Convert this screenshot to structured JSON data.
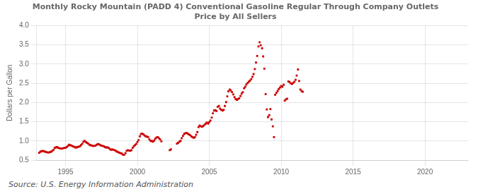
{
  "chart_data": {
    "type": "scatter",
    "title": "Monthly Rocky Mountain (PADD 4) Conventional Gasoline Regular Through Company Outlets\nPrice by All Sellers",
    "ylabel": "Dollars per Gallon",
    "source": "Source: U.S. Energy Information Administration",
    "color": "#cc0000",
    "marker": "square",
    "grid": true,
    "xlim": [
      1993.0,
      2023.0
    ],
    "ylim": [
      0.5,
      4.0
    ],
    "xticks": [
      1995,
      2000,
      2005,
      2010,
      2015,
      2020
    ],
    "yticks": [
      0.5,
      {
        "value": 1.0,
        "label": "1.0"
      },
      1.5,
      {
        "value": 2.0,
        "label": "2.0"
      },
      2.5,
      {
        "value": 3.0,
        "label": "3.0"
      },
      3.5,
      {
        "value": 4.0,
        "label": "4.0"
      }
    ],
    "x": [
      1993.17,
      1993.25,
      1993.33,
      1993.42,
      1993.5,
      1993.58,
      1993.67,
      1993.75,
      1993.83,
      1993.92,
      1994.0,
      1994.08,
      1994.17,
      1994.25,
      1994.33,
      1994.42,
      1994.5,
      1994.58,
      1994.67,
      1994.75,
      1994.83,
      1994.92,
      1995.0,
      1995.08,
      1995.17,
      1995.25,
      1995.33,
      1995.42,
      1995.5,
      1995.58,
      1995.67,
      1995.75,
      1995.83,
      1995.92,
      1996.0,
      1996.08,
      1996.17,
      1996.25,
      1996.33,
      1996.42,
      1996.5,
      1996.58,
      1996.67,
      1996.75,
      1996.83,
      1996.92,
      1997.0,
      1997.08,
      1997.17,
      1997.25,
      1997.33,
      1997.42,
      1997.5,
      1997.58,
      1997.67,
      1997.75,
      1997.83,
      1997.92,
      1998.0,
      1998.08,
      1998.17,
      1998.25,
      1998.33,
      1998.42,
      1998.5,
      1998.58,
      1998.67,
      1998.75,
      1998.83,
      1998.92,
      1999.0,
      1999.08,
      1999.17,
      1999.25,
      1999.33,
      1999.42,
      1999.5,
      1999.58,
      1999.67,
      1999.75,
      1999.83,
      1999.92,
      2000.0,
      2000.08,
      2000.17,
      2000.25,
      2000.33,
      2000.42,
      2000.5,
      2000.58,
      2000.67,
      2000.75,
      2000.83,
      2000.92,
      2001.0,
      2001.08,
      2001.17,
      2001.25,
      2001.33,
      2001.42,
      2001.5,
      2001.58,
      2001.67,
      2002.25,
      2002.33,
      2002.75,
      2002.83,
      2002.92,
      2003.0,
      2003.08,
      2003.17,
      2003.25,
      2003.33,
      2003.42,
      2003.5,
      2003.58,
      2003.67,
      2003.75,
      2003.83,
      2003.92,
      2004.0,
      2004.08,
      2004.17,
      2004.25,
      2004.33,
      2004.42,
      2004.5,
      2004.58,
      2004.67,
      2004.75,
      2004.83,
      2004.92,
      2005.0,
      2005.08,
      2005.17,
      2005.25,
      2005.33,
      2005.42,
      2005.5,
      2005.58,
      2005.67,
      2005.75,
      2005.83,
      2005.92,
      2006.0,
      2006.08,
      2006.17,
      2006.25,
      2006.33,
      2006.42,
      2006.5,
      2006.58,
      2006.67,
      2006.75,
      2006.83,
      2006.92,
      2007.0,
      2007.08,
      2007.17,
      2007.25,
      2007.33,
      2007.42,
      2007.5,
      2007.58,
      2007.67,
      2007.75,
      2007.83,
      2007.92,
      2008.0,
      2008.08,
      2008.17,
      2008.25,
      2008.33,
      2008.42,
      2008.5,
      2008.58,
      2008.67,
      2008.75,
      2008.83,
      2008.92,
      2009.0,
      2009.08,
      2009.17,
      2009.25,
      2009.33,
      2009.42,
      2009.5,
      2009.58,
      2009.67,
      2009.75,
      2009.83,
      2009.92,
      2010.0,
      2010.08,
      2010.17,
      2010.25,
      2010.33,
      2010.42,
      2010.5,
      2010.58,
      2010.67,
      2010.75,
      2010.83,
      2010.92,
      2011.0,
      2011.08,
      2011.17,
      2011.25,
      2011.33,
      2011.42,
      2011.5
    ],
    "values": [
      0.69,
      0.72,
      0.73,
      0.74,
      0.73,
      0.72,
      0.71,
      0.7,
      0.7,
      0.71,
      0.72,
      0.74,
      0.77,
      0.82,
      0.83,
      0.84,
      0.82,
      0.81,
      0.8,
      0.8,
      0.81,
      0.82,
      0.82,
      0.84,
      0.87,
      0.9,
      0.89,
      0.88,
      0.86,
      0.85,
      0.83,
      0.83,
      0.84,
      0.85,
      0.86,
      0.89,
      0.93,
      0.98,
      1.0,
      0.97,
      0.95,
      0.93,
      0.9,
      0.89,
      0.88,
      0.87,
      0.87,
      0.88,
      0.9,
      0.92,
      0.91,
      0.89,
      0.88,
      0.87,
      0.86,
      0.84,
      0.83,
      0.83,
      0.82,
      0.79,
      0.77,
      0.78,
      0.77,
      0.76,
      0.74,
      0.72,
      0.71,
      0.69,
      0.68,
      0.67,
      0.64,
      0.64,
      0.68,
      0.74,
      0.76,
      0.75,
      0.74,
      0.76,
      0.82,
      0.86,
      0.89,
      0.92,
      0.97,
      1.02,
      1.12,
      1.18,
      1.19,
      1.17,
      1.14,
      1.12,
      1.11,
      1.1,
      1.04,
      1.0,
      1.0,
      0.98,
      1.01,
      1.06,
      1.09,
      1.1,
      1.07,
      1.04,
      0.99,
      0.76,
      0.78,
      0.93,
      0.95,
      0.98,
      1.0,
      1.07,
      1.13,
      1.18,
      1.2,
      1.21,
      1.19,
      1.17,
      1.15,
      1.12,
      1.1,
      1.08,
      1.1,
      1.16,
      1.23,
      1.36,
      1.4,
      1.38,
      1.37,
      1.39,
      1.42,
      1.45,
      1.48,
      1.45,
      1.49,
      1.53,
      1.61,
      1.72,
      1.79,
      1.8,
      1.78,
      1.89,
      1.91,
      1.84,
      1.81,
      1.79,
      1.81,
      1.91,
      2.01,
      2.16,
      2.29,
      2.34,
      2.31,
      2.27,
      2.21,
      2.14,
      2.09,
      2.07,
      2.09,
      2.11,
      2.17,
      2.23,
      2.27,
      2.37,
      2.41,
      2.47,
      2.51,
      2.54,
      2.57,
      2.61,
      2.67,
      2.74,
      2.87,
      3.04,
      3.21,
      3.46,
      3.57,
      3.49,
      3.41,
      3.2,
      2.88,
      2.22,
      1.82,
      1.62,
      1.67,
      1.83,
      1.56,
      1.38,
      1.1,
      2.2,
      2.25,
      2.3,
      2.35,
      2.39,
      2.43,
      2.41,
      2.46,
      2.05,
      2.08,
      2.1,
      2.55,
      2.53,
      2.5,
      2.48,
      2.51,
      2.54,
      2.59,
      2.7,
      2.86,
      2.56,
      2.34,
      2.3,
      2.28
    ]
  }
}
